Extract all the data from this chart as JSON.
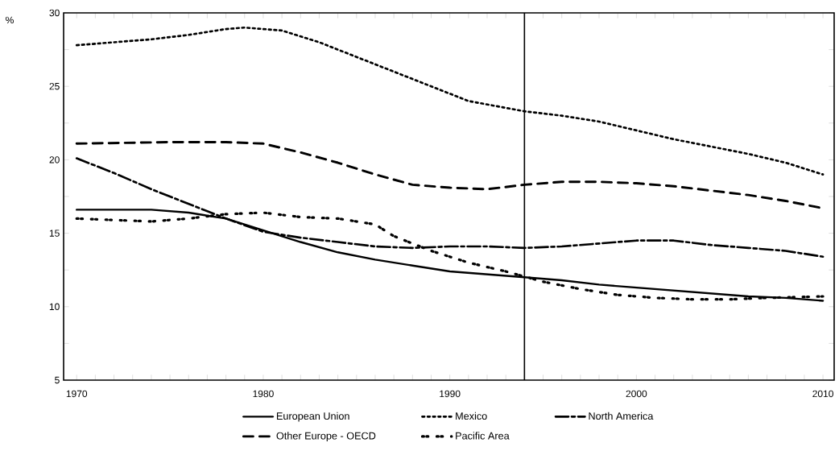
{
  "chart_data": {
    "type": "line",
    "ylabel": "%",
    "xlim": [
      1969.3,
      2010.6
    ],
    "ylim": [
      5,
      30
    ],
    "xticks": [
      1970,
      {
        "value": 1971,
        "label": null
      },
      {
        "value": 1972,
        "label": null
      },
      {
        "value": 1973,
        "label": null
      },
      {
        "value": 1974,
        "label": null
      },
      {
        "value": 1975,
        "label": null
      },
      {
        "value": 1976,
        "label": null
      },
      {
        "value": 1977,
        "label": null
      },
      {
        "value": 1978,
        "label": null
      },
      {
        "value": 1979,
        "label": null
      },
      1980,
      {
        "value": 1981,
        "label": null
      },
      {
        "value": 1982,
        "label": null
      },
      {
        "value": 1983,
        "label": null
      },
      {
        "value": 1984,
        "label": null
      },
      {
        "value": 1985,
        "label": null
      },
      {
        "value": 1986,
        "label": null
      },
      {
        "value": 1987,
        "label": null
      },
      {
        "value": 1988,
        "label": null
      },
      {
        "value": 1989,
        "label": null
      },
      1990,
      {
        "value": 1991,
        "label": null
      },
      {
        "value": 1992,
        "label": null
      },
      {
        "value": 1993,
        "label": null
      },
      {
        "value": 1994,
        "label": null
      },
      {
        "value": 1995,
        "label": null
      },
      {
        "value": 1996,
        "label": null
      },
      {
        "value": 1997,
        "label": null
      },
      {
        "value": 1998,
        "label": null
      },
      {
        "value": 1999,
        "label": null
      },
      2000,
      {
        "value": 2001,
        "label": null
      },
      {
        "value": 2002,
        "label": null
      },
      {
        "value": 2003,
        "label": null
      },
      {
        "value": 2004,
        "label": null
      },
      {
        "value": 2005,
        "label": null
      },
      {
        "value": 2006,
        "label": null
      },
      {
        "value": 2007,
        "label": null
      },
      {
        "value": 2008,
        "label": null
      },
      {
        "value": 2009,
        "label": null
      },
      2010
    ],
    "yticks": [
      5,
      {
        "value": 7.5,
        "label": null
      },
      10,
      {
        "value": 12.5,
        "label": null
      },
      15,
      {
        "value": 17.5,
        "label": null
      },
      20,
      {
        "value": 22.5,
        "label": null
      },
      25,
      {
        "value": 27.5,
        "label": null
      },
      30
    ],
    "grid": false,
    "legend": "bottom",
    "marker": "none",
    "ref_lines": [
      {
        "axis": "x",
        "value": 1994,
        "color": "#000000",
        "line_style": "solid"
      }
    ],
    "series": [
      {
        "name": "European Union",
        "color": "#000000",
        "line_style": "solid",
        "x": [
          1970,
          1972,
          1974,
          1976,
          1978,
          1980,
          1982,
          1984,
          1986,
          1988,
          1990,
          1992,
          1994,
          1996,
          1998,
          2000,
          2002,
          2004,
          2006,
          2008,
          2010
        ],
        "values": [
          16.6,
          16.6,
          16.6,
          16.4,
          16.0,
          15.2,
          14.4,
          13.7,
          13.2,
          12.8,
          12.4,
          12.2,
          12.0,
          11.8,
          11.5,
          11.3,
          11.1,
          10.9,
          10.7,
          10.6,
          10.4
        ]
      },
      {
        "name": "Mexico",
        "color": "#000000",
        "line_style": "dotted",
        "x": [
          1970,
          1972,
          1974,
          1976,
          1978,
          1979,
          1981,
          1983,
          1985,
          1987,
          1989,
          1991,
          1994,
          1996,
          1998,
          2000,
          2002,
          2004,
          2006,
          2008,
          2010
        ],
        "values": [
          27.8,
          28.0,
          28.2,
          28.5,
          28.9,
          29.0,
          28.8,
          28.0,
          27.0,
          26.0,
          25.0,
          24.0,
          23.3,
          23.0,
          22.6,
          22.0,
          21.4,
          20.9,
          20.4,
          19.8,
          19.0
        ]
      },
      {
        "name": "North America",
        "color": "#000000",
        "line_style": "dashdot",
        "x": [
          1970,
          1972,
          1974,
          1976,
          1978,
          1980,
          1982,
          1984,
          1986,
          1988,
          1990,
          1992,
          1994,
          1996,
          1998,
          2000,
          2002,
          2004,
          2006,
          2008,
          2010
        ],
        "values": [
          20.1,
          19.1,
          18.0,
          17.0,
          16.0,
          15.1,
          14.7,
          14.4,
          14.1,
          14.0,
          14.1,
          14.1,
          14.0,
          14.1,
          14.3,
          14.5,
          14.5,
          14.2,
          14.0,
          13.8,
          13.4
        ]
      },
      {
        "name": "Other Europe - OECD",
        "color": "#000000",
        "line_style": "dashed",
        "x": [
          1970,
          1975,
          1978,
          1980,
          1982,
          1984,
          1986,
          1988,
          1990,
          1992,
          1994,
          1996,
          1998,
          2000,
          2002,
          2004,
          2006,
          2008,
          2010
        ],
        "values": [
          21.1,
          21.2,
          21.2,
          21.1,
          20.5,
          19.8,
          19.0,
          18.3,
          18.1,
          18.0,
          18.3,
          18.5,
          18.5,
          18.4,
          18.2,
          17.9,
          17.6,
          17.2,
          16.7
        ]
      },
      {
        "name": "Pacific Area",
        "color": "#000000",
        "line_style": "loosely dotted",
        "x": [
          1970,
          1972,
          1974,
          1976,
          1978,
          1980,
          1982,
          1984,
          1986,
          1987,
          1989,
          1991,
          1993,
          1995,
          1997,
          1999,
          2001,
          2003,
          2005,
          2007,
          2010
        ],
        "values": [
          16.0,
          15.9,
          15.8,
          16.0,
          16.3,
          16.4,
          16.1,
          16.0,
          15.6,
          14.8,
          13.8,
          13.0,
          12.4,
          11.7,
          11.2,
          10.8,
          10.6,
          10.5,
          10.5,
          10.6,
          10.7
        ]
      }
    ]
  }
}
